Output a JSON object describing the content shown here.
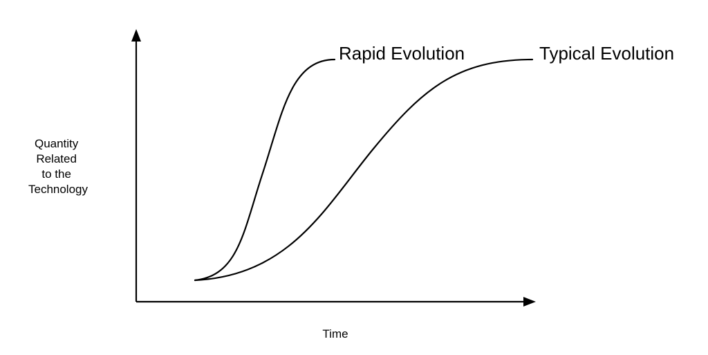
{
  "diagram": {
    "y_axis_label": [
      "Quantity",
      "Related",
      "to the",
      "Technology"
    ],
    "x_axis_label": "Time",
    "curves": [
      {
        "label": "Rapid Evolution"
      },
      {
        "label": "Typical Evolution"
      }
    ]
  }
}
